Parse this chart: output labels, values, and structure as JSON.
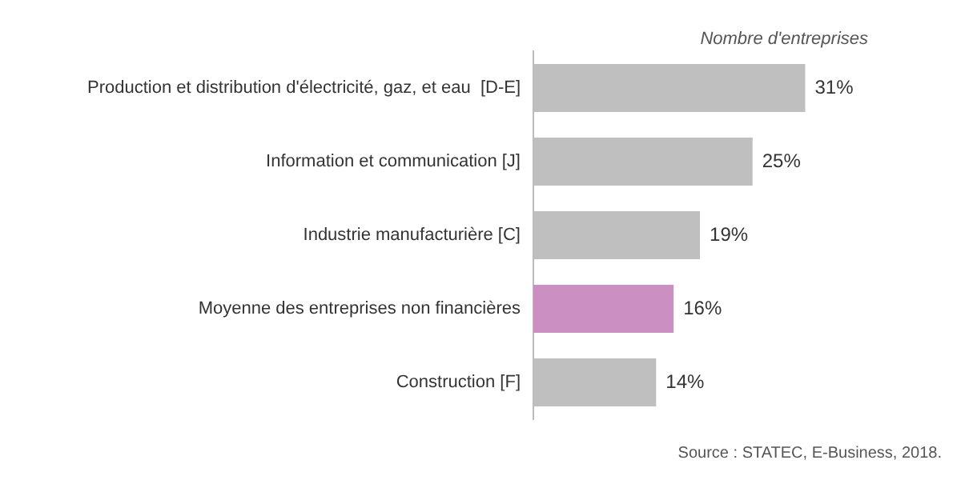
{
  "chart_data": {
    "type": "bar",
    "orientation": "horizontal",
    "xlabel": "Nombre d'entreprises",
    "categories": [
      "Production et distribution d'électricité, gaz, et eau  [D-E]",
      "Information et communication [J]",
      "Industrie manufacturière [C]",
      "Moyenne des entreprises non financières",
      "Construction [F]"
    ],
    "values": [
      31,
      25,
      19,
      16,
      14
    ],
    "colors": [
      "#bfbfbf",
      "#bfbfbf",
      "#bfbfbf",
      "#cc8fc2",
      "#bfbfbf"
    ],
    "value_labels": [
      "31%",
      "25%",
      "19%",
      "16%",
      "14%"
    ],
    "grid": false,
    "legend": false,
    "annotations": [
      "Source : STATEC, E-Business, 2018."
    ]
  }
}
